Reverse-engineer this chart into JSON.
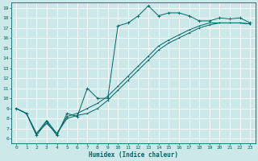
{
  "xlabel": "Humidex (Indice chaleur)",
  "ylabel": "",
  "bg_color": "#cce8e8",
  "grid_color": "#ffffff",
  "line_color": "#006666",
  "xlim": [
    -0.5,
    23.5
  ],
  "ylim": [
    5.5,
    19.5
  ],
  "xticks": [
    0,
    1,
    2,
    3,
    4,
    5,
    6,
    7,
    8,
    9,
    10,
    11,
    12,
    13,
    14,
    15,
    16,
    17,
    18,
    19,
    20,
    21,
    22,
    23
  ],
  "yticks": [
    6,
    7,
    8,
    9,
    10,
    11,
    12,
    13,
    14,
    15,
    16,
    17,
    18,
    19
  ],
  "line1_x": [
    0,
    1,
    2,
    3,
    4,
    5,
    6,
    7,
    8,
    9,
    10,
    11,
    12,
    13,
    14,
    15,
    16,
    17,
    18,
    19,
    20,
    21,
    22,
    23
  ],
  "line1_y": [
    9.0,
    8.5,
    6.3,
    7.7,
    6.3,
    8.5,
    8.2,
    11.0,
    10.0,
    10.0,
    17.2,
    17.5,
    18.2,
    19.2,
    18.2,
    18.5,
    18.5,
    18.2,
    17.7,
    17.7,
    18.0,
    17.9,
    18.0,
    17.5
  ],
  "line2_x": [
    0,
    1,
    2,
    3,
    4,
    5,
    6,
    7,
    8,
    9,
    10,
    11,
    12,
    13,
    14,
    15,
    16,
    17,
    18,
    19,
    20,
    21,
    22,
    23
  ],
  "line2_y": [
    9.0,
    8.5,
    6.5,
    7.5,
    6.5,
    8.0,
    8.3,
    8.5,
    9.0,
    9.8,
    10.8,
    11.8,
    12.8,
    13.8,
    14.8,
    15.5,
    16.0,
    16.5,
    17.0,
    17.3,
    17.5,
    17.5,
    17.5,
    17.4
  ],
  "line3_x": [
    0,
    1,
    2,
    3,
    4,
    5,
    6,
    7,
    8,
    9,
    10,
    11,
    12,
    13,
    14,
    15,
    16,
    17,
    18,
    19,
    20,
    21,
    22,
    23
  ],
  "line3_y": [
    9.0,
    8.5,
    6.5,
    7.8,
    6.5,
    8.2,
    8.5,
    9.0,
    9.5,
    10.2,
    11.2,
    12.2,
    13.2,
    14.2,
    15.2,
    15.8,
    16.3,
    16.8,
    17.2,
    17.5,
    17.5,
    17.5,
    17.5,
    17.4
  ]
}
